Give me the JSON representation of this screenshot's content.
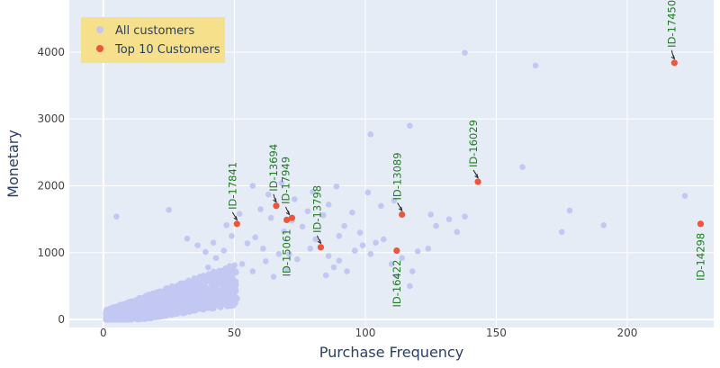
{
  "chart_data": {
    "type": "scatter",
    "xlabel": "Purchase Frequency",
    "ylabel": "Monetary",
    "xlim": [
      -13,
      233
    ],
    "ylim": [
      -120,
      4780
    ],
    "xticks": [
      0,
      50,
      100,
      150,
      200
    ],
    "yticks": [
      0,
      1000,
      2000,
      3000,
      4000
    ],
    "grid": true,
    "legend_position": "top-left",
    "colors": {
      "all_customers": "#c3c8f3",
      "top_customers": "#ef553b",
      "plot_bg": "#e5ecf6",
      "legend_bg": "#f7e08b",
      "annotation": "#1e7b1e"
    },
    "series": [
      {
        "name": "All customers",
        "points": [
          [
            138,
            3990
          ],
          [
            165,
            3800
          ],
          [
            117,
            2900
          ],
          [
            102,
            2770
          ],
          [
            160,
            2280
          ],
          [
            222,
            1850
          ],
          [
            178,
            1630
          ],
          [
            191,
            1410
          ],
          [
            175,
            1310
          ],
          [
            132,
            1500
          ],
          [
            138,
            1540
          ],
          [
            125,
            1570
          ],
          [
            111,
            1780
          ],
          [
            106,
            1700
          ],
          [
            101,
            1900
          ],
          [
            89,
            1990
          ],
          [
            95,
            1600
          ],
          [
            92,
            1400
          ],
          [
            98,
            1300
          ],
          [
            104,
            1150
          ],
          [
            114,
            920
          ],
          [
            110,
            830
          ],
          [
            118,
            720
          ],
          [
            112,
            650
          ],
          [
            117,
            500
          ],
          [
            84,
            1560
          ],
          [
            78,
            1620
          ],
          [
            76,
            1390
          ],
          [
            72,
            1480
          ],
          [
            69,
            1320
          ],
          [
            64,
            1520
          ],
          [
            60,
            1650
          ],
          [
            58,
            1230
          ],
          [
            55,
            1140
          ],
          [
            81,
            1200
          ],
          [
            79,
            1060
          ],
          [
            86,
            950
          ],
          [
            90,
            880
          ],
          [
            99,
            1110
          ],
          [
            107,
            1200
          ],
          [
            96,
            1030
          ],
          [
            88,
            780
          ],
          [
            74,
            900
          ],
          [
            67,
            980
          ],
          [
            62,
            870
          ],
          [
            70,
            760
          ],
          [
            65,
            640
          ],
          [
            57,
            720
          ],
          [
            53,
            830
          ],
          [
            49,
            1250
          ],
          [
            46,
            1030
          ],
          [
            43,
            920
          ],
          [
            40,
            780
          ],
          [
            42,
            1150
          ],
          [
            25,
            1640
          ],
          [
            5,
            1540
          ],
          [
            39,
            1010
          ],
          [
            61,
            1060
          ],
          [
            71,
            980
          ],
          [
            85,
            660
          ],
          [
            93,
            720
          ],
          [
            102,
            980
          ],
          [
            120,
            1020
          ],
          [
            124,
            1060
          ],
          [
            127,
            1400
          ],
          [
            135,
            1310
          ],
          [
            32,
            1210
          ],
          [
            36,
            1110
          ],
          [
            47,
            1410
          ],
          [
            52,
            1580
          ],
          [
            66,
            1710
          ],
          [
            73,
            1800
          ],
          [
            57,
            2000
          ],
          [
            63,
            1870
          ],
          [
            80,
            1910
          ],
          [
            68,
            2040
          ],
          [
            86,
            1720
          ],
          [
            90,
            1250
          ]
        ]
      },
      {
        "name": "Top 10 Customers",
        "points": [
          [
            218,
            3840
          ],
          [
            143,
            2060
          ],
          [
            114,
            1570
          ],
          [
            51,
            1430
          ],
          [
            66,
            1700
          ],
          [
            70,
            1490
          ],
          [
            72,
            1520
          ],
          [
            83,
            1080
          ],
          [
            112,
            1030
          ],
          [
            228,
            1430
          ]
        ]
      }
    ],
    "annotations": [
      {
        "text": "ID-17450",
        "x": 218,
        "y": 3840
      },
      {
        "text": "ID-16029",
        "x": 143,
        "y": 2060
      },
      {
        "text": "ID-13089",
        "x": 114,
        "y": 1570
      },
      {
        "text": "ID-17841",
        "x": 51,
        "y": 1430
      },
      {
        "text": "ID-13694",
        "x": 66,
        "y": 1700
      },
      {
        "text": "ID-17949",
        "x": 71,
        "y": 1510
      },
      {
        "text": "ID-13798",
        "x": 83,
        "y": 1080
      },
      {
        "text": "ID-15061",
        "x": 70,
        "y": 1490
      },
      {
        "text": "ID-16422",
        "x": 112,
        "y": 1030
      },
      {
        "text": "ID-14298",
        "x": 228,
        "y": 1430
      }
    ]
  }
}
